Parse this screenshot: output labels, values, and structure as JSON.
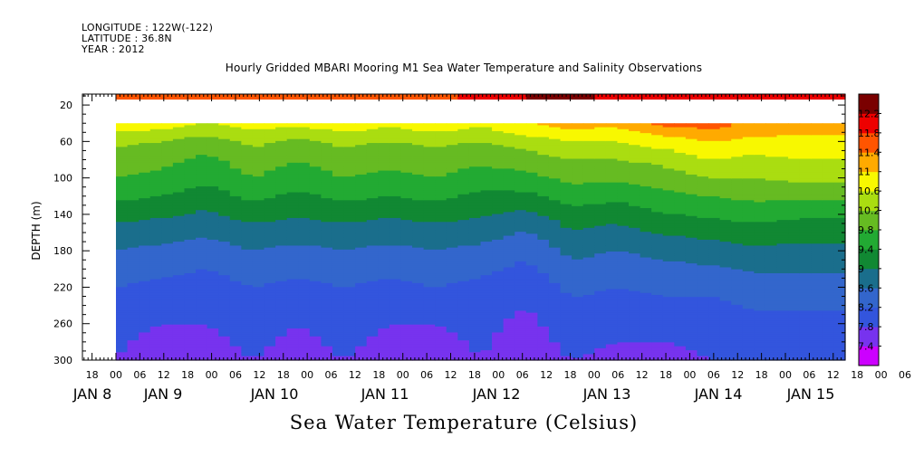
{
  "header": {
    "longitude": "LONGITUDE : 122W(-122)",
    "latitude": "LATITUDE : 36.8N",
    "year": "YEAR : 2012"
  },
  "chart_data": {
    "type": "heatmap",
    "title": "Hourly Gridded MBARI Mooring M1 Sea Water Temperature and Salinity Observations",
    "variable_label": "Sea Water Temperature (Celsius)",
    "ylabel": "DEPTH (m)",
    "y_inverted": true,
    "ylim": [
      300,
      8
    ],
    "y_ticks": [
      20,
      60,
      100,
      140,
      180,
      220,
      260,
      300
    ],
    "x_hour_ticks": [
      "18",
      "00",
      "06",
      "12",
      "18",
      "00",
      "06",
      "12",
      "18",
      "00",
      "06",
      "12",
      "18",
      "00",
      "06",
      "12",
      "18",
      "00",
      "06",
      "12",
      "18",
      "00",
      "06",
      "12",
      "18",
      "00",
      "06",
      "12",
      "18",
      "00",
      "06",
      "12",
      "18",
      "00",
      "06",
      "12"
    ],
    "x_day_labels": [
      "JAN 8",
      "JAN 9",
      "JAN 10",
      "JAN 11",
      "JAN 12",
      "JAN 13",
      "JAN 14",
      "JAN 15"
    ],
    "colorbar_levels": [
      7.4,
      7.8,
      8.2,
      8.6,
      9,
      9.4,
      9.8,
      10.2,
      10.6,
      11,
      11.4,
      11.8,
      12.2
    ],
    "colorbar_colors": [
      "#cc00ff",
      "#7733ee",
      "#3355dd",
      "#3366cc",
      "#1a6e8c",
      "#118833",
      "#22aa33",
      "#66bb22",
      "#aadd11",
      "#f8f800",
      "#ffaa00",
      "#ff5500",
      "#ee0000",
      "#7a0000"
    ],
    "profile_depths": [
      10,
      40,
      60,
      80,
      100,
      120,
      150,
      180,
      220,
      260,
      300
    ],
    "profiles": [
      {
        "time": "JAN 8 00",
        "temps": [
          11.5,
          10.9,
          10.3,
          10.0,
          9.8,
          9.5,
          9.0,
          8.6,
          8.2,
          7.9,
          7.8
        ]
      },
      {
        "time": "JAN 8 12",
        "temps": [
          11.7,
          10.8,
          10.2,
          9.9,
          9.7,
          9.4,
          8.9,
          8.5,
          8.1,
          7.8,
          7.6
        ]
      },
      {
        "time": "JAN 9 00",
        "temps": [
          11.6,
          10.6,
          10.0,
          9.7,
          9.5,
          9.2,
          8.8,
          8.4,
          8.0,
          7.8,
          7.7
        ]
      },
      {
        "time": "JAN 9 12",
        "temps": [
          11.6,
          10.8,
          10.3,
          10.0,
          9.8,
          9.5,
          9.0,
          8.6,
          8.2,
          7.9,
          7.8
        ]
      },
      {
        "time": "JAN 10 00",
        "temps": [
          11.6,
          10.7,
          10.1,
          9.8,
          9.6,
          9.3,
          8.9,
          8.5,
          8.1,
          7.8,
          7.7
        ]
      },
      {
        "time": "JAN 10 12",
        "temps": [
          11.5,
          10.9,
          10.3,
          10.0,
          9.8,
          9.5,
          9.0,
          8.6,
          8.2,
          7.9,
          7.8
        ]
      },
      {
        "time": "JAN 11 00",
        "temps": [
          11.6,
          10.7,
          10.2,
          9.9,
          9.7,
          9.4,
          8.9,
          8.5,
          8.1,
          7.8,
          7.7
        ]
      },
      {
        "time": "JAN 11 12",
        "temps": [
          11.6,
          10.9,
          10.3,
          10.0,
          9.8,
          9.5,
          9.0,
          8.6,
          8.2,
          7.8,
          7.6
        ]
      },
      {
        "time": "JAN 12 00",
        "temps": [
          12.0,
          10.7,
          10.2,
          9.9,
          9.6,
          9.3,
          8.9,
          8.5,
          8.1,
          7.9,
          7.8
        ]
      },
      {
        "time": "JAN 12 12",
        "temps": [
          12.2,
          11.0,
          10.4,
          10.0,
          9.7,
          9.3,
          8.7,
          8.3,
          7.9,
          7.7,
          7.6
        ]
      },
      {
        "time": "JAN 13 00",
        "temps": [
          12.3,
          11.2,
          10.6,
          10.2,
          9.9,
          9.6,
          9.1,
          8.7,
          8.3,
          8.0,
          7.8
        ]
      },
      {
        "time": "JAN 13 12",
        "temps": [
          12.1,
          11.1,
          10.6,
          10.2,
          9.9,
          9.5,
          9.0,
          8.6,
          8.2,
          7.9,
          7.7
        ]
      },
      {
        "time": "JAN 14 00",
        "temps": [
          12.1,
          11.5,
          10.8,
          10.3,
          10.0,
          9.7,
          9.2,
          8.7,
          8.3,
          7.9,
          7.7
        ]
      },
      {
        "time": "JAN 14 12",
        "temps": [
          11.9,
          11.6,
          11.0,
          10.6,
          10.2,
          9.8,
          9.3,
          8.8,
          8.3,
          7.9,
          7.8
        ]
      },
      {
        "time": "JAN 15 00",
        "temps": [
          11.8,
          11.3,
          10.9,
          10.5,
          10.2,
          9.9,
          9.4,
          8.9,
          8.4,
          8.1,
          7.9
        ]
      },
      {
        "time": "JAN 15 12",
        "temps": [
          11.8,
          11.2,
          10.9,
          10.6,
          10.3,
          9.9,
          9.3,
          8.9,
          8.4,
          8.1,
          8.0
        ]
      }
    ]
  }
}
